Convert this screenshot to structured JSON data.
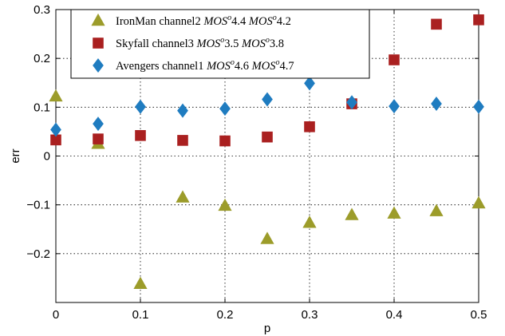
{
  "chart_data": {
    "type": "scatter",
    "xlabel": "p",
    "ylabel": "err",
    "xlim": [
      0,
      0.5
    ],
    "ylim": [
      -0.3,
      0.3
    ],
    "xticks": [
      0,
      0.1,
      0.2,
      0.3,
      0.4,
      0.5
    ],
    "xtick_labels": [
      "0",
      "0.1",
      "0.2",
      "0.3",
      "0.4",
      "0.5"
    ],
    "yticks": [
      -0.2,
      -0.1,
      0,
      0.1,
      0.2,
      0.3
    ],
    "ytick_labels": [
      "−0.2",
      "−0.1",
      "0",
      "0.1",
      "0.2",
      "0.3"
    ],
    "grid": true,
    "legend_position": "top-left",
    "x": [
      0,
      0.05,
      0.1,
      0.15,
      0.2,
      0.25,
      0.3,
      0.35,
      0.4,
      0.45,
      0.5
    ],
    "series": [
      {
        "name": "IronMan channel2 MOS^o4.4 MOS^o4.2",
        "legend_parts": [
          "IronMan channel2 ",
          "MOS",
          "o",
          "4.4 ",
          "MOS",
          "o",
          "4.2"
        ],
        "marker": "triangle",
        "color": "#9c9c2a",
        "values": [
          0.122,
          0.025,
          -0.262,
          -0.085,
          -0.102,
          -0.17,
          -0.137,
          -0.121,
          -0.118,
          -0.113,
          -0.097
        ]
      },
      {
        "name": "Skyfall channel3 MOS^o3.5 MOS^o3.8",
        "legend_parts": [
          "Skyfall channel3 ",
          "MOS",
          "o",
          "3.5 ",
          "MOS",
          "o",
          "3.8"
        ],
        "marker": "square",
        "color": "#aa2020",
        "values": [
          0.033,
          0.035,
          0.042,
          0.032,
          0.031,
          0.039,
          0.06,
          0.107,
          0.197,
          0.27,
          0.279
        ]
      },
      {
        "name": "Avengers channel1 MOS^o4.6 MOS^o4.7",
        "legend_parts": [
          "Avengers channel1 ",
          "MOS",
          "o",
          "4.6 ",
          "MOS",
          "o",
          "4.7"
        ],
        "marker": "diamond",
        "color": "#1f7cc0",
        "values": [
          0.054,
          0.066,
          0.101,
          0.093,
          0.097,
          0.116,
          0.149,
          0.11,
          0.102,
          0.107,
          0.101
        ]
      }
    ]
  }
}
